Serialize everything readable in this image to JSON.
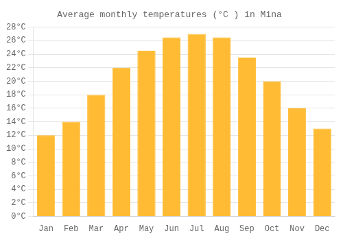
{
  "chart_data": {
    "type": "bar",
    "title": "Average monthly temperatures (°C ) in Mina",
    "categories": [
      "Jan",
      "Feb",
      "Mar",
      "Apr",
      "May",
      "Jun",
      "Jul",
      "Aug",
      "Sep",
      "Oct",
      "Nov",
      "Dec"
    ],
    "values": [
      12,
      14,
      18,
      22,
      24.5,
      26.5,
      27,
      26.5,
      23.5,
      20,
      16,
      13
    ],
    "color": "#FFBB33",
    "ylim": [
      0,
      28
    ],
    "yticks": [
      {
        "value": 0,
        "label": "0°C"
      },
      {
        "value": 2,
        "label": "2°C"
      },
      {
        "value": 4,
        "label": "4°C"
      },
      {
        "value": 6,
        "label": "6°C"
      },
      {
        "value": 8,
        "label": "8°C"
      },
      {
        "value": 10,
        "label": "10°C"
      },
      {
        "value": 12,
        "label": "12°C"
      },
      {
        "value": 14,
        "label": "14°C"
      },
      {
        "value": 16,
        "label": "16°C"
      },
      {
        "value": 18,
        "label": "18°C"
      },
      {
        "value": 20,
        "label": "20°C"
      },
      {
        "value": 22,
        "label": "22°C"
      },
      {
        "value": 24,
        "label": "24°C"
      },
      {
        "value": 26,
        "label": "26°C"
      },
      {
        "value": 28,
        "label": "28°C"
      }
    ],
    "grid": true
  }
}
